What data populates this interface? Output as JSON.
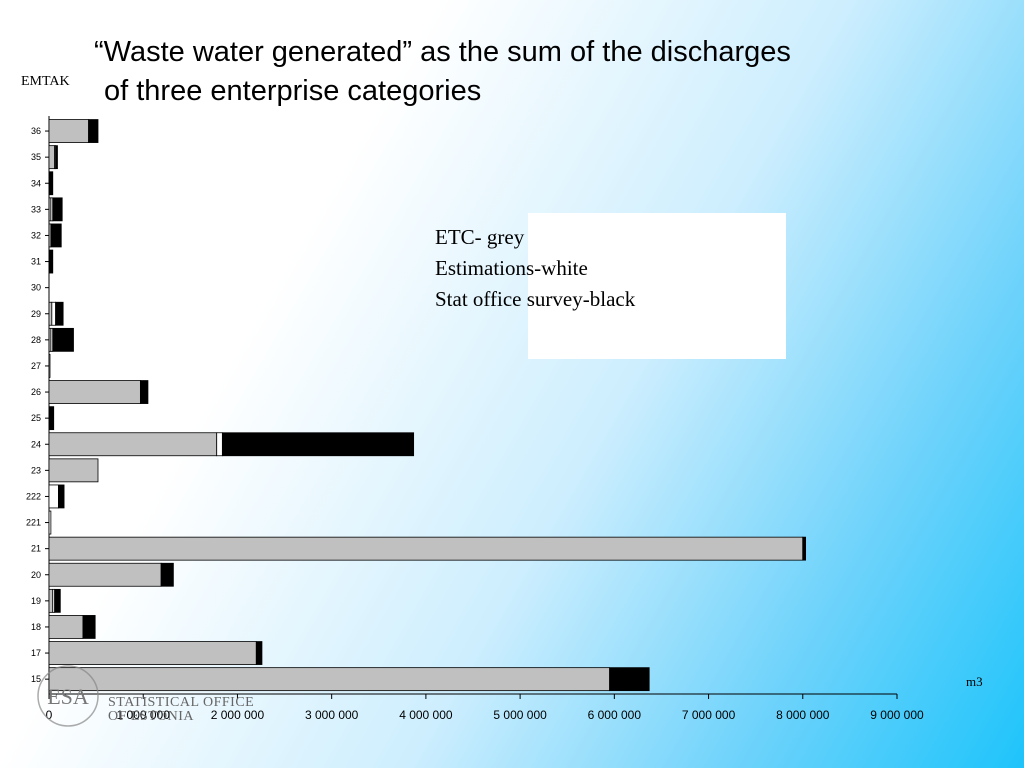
{
  "title": {
    "line1": "“Waste water generated” as the sum of the discharges",
    "line2": "of three enterprise categories"
  },
  "legend": {
    "line1": "ETC- grey",
    "line2": "Estimations-white",
    "line3": "Stat office survey-black"
  },
  "logo": {
    "mark": "ESA",
    "line1": "STATISTICAL OFFICE",
    "line2": "OF ESTONIA"
  },
  "colors": {
    "etc": "#c0c0c0",
    "estimations": "#ffffff",
    "survey": "#000000"
  },
  "chart_data": {
    "type": "bar",
    "orientation": "horizontal",
    "stacked": true,
    "title": "“Waste water generated” as the sum of the discharges of three enterprise categories",
    "ylabel": "EMTAK",
    "xlabel": "m3",
    "xlim": [
      0,
      9000000
    ],
    "x_ticks": [
      "0",
      "1 000 000",
      "2 000 000",
      "3 000 000",
      "4 000 000",
      "5 000 000",
      "6 000 000",
      "7 000 000",
      "8 000 000",
      "9 000 000"
    ],
    "grid": false,
    "legend_position": "upper-right text block",
    "categories": [
      "36",
      "35",
      "34",
      "33",
      "32",
      "31",
      "30",
      "29",
      "28",
      "27",
      "26",
      "25",
      "24",
      "23",
      "222",
      "221",
      "21",
      "20",
      "19",
      "18",
      "17",
      "15"
    ],
    "series": [
      {
        "name": "ETC- grey",
        "values": [
          420000,
          60000,
          0,
          20000,
          20000,
          0,
          0,
          30000,
          20000,
          0,
          970000,
          0,
          1780000,
          520000,
          0,
          0,
          8000000,
          1190000,
          40000,
          360000,
          2200000,
          5950000
        ]
      },
      {
        "name": "Estimations-white",
        "values": [
          0,
          10000,
          0,
          20000,
          0,
          0,
          0,
          40000,
          20000,
          10000,
          0,
          0,
          60000,
          0,
          100000,
          20000,
          0,
          0,
          20000,
          0,
          0,
          0
        ]
      },
      {
        "name": "Stat office survey-black",
        "values": [
          100000,
          20000,
          40000,
          100000,
          110000,
          40000,
          0,
          80000,
          220000,
          0,
          80000,
          50000,
          2030000,
          0,
          60000,
          0,
          30000,
          130000,
          60000,
          130000,
          60000,
          420000
        ]
      }
    ]
  }
}
